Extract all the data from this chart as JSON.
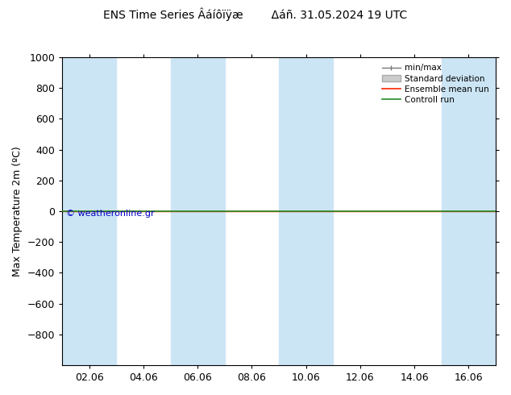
{
  "title": "ENS Time Series Âáíôïÿæ        Δáñ. 31.05.2024 19 UTC",
  "ylabel": "Max Temperature 2m (ºC)",
  "ylim_top": -1000,
  "ylim_bottom": 1000,
  "yticks": [
    -800,
    -600,
    -400,
    -200,
    0,
    200,
    400,
    600,
    800,
    1000
  ],
  "xtick_labels": [
    "02.06",
    "04.06",
    "06.06",
    "08.06",
    "10.06",
    "12.06",
    "14.06",
    "16.06"
  ],
  "xtick_positions": [
    1,
    3,
    5,
    7,
    9,
    11,
    13,
    15
  ],
  "xlim": [
    0,
    16
  ],
  "shaded_bands": [
    [
      0,
      2
    ],
    [
      4,
      6
    ],
    [
      8,
      10
    ],
    [
      14,
      16
    ]
  ],
  "shade_color": "#cce5f5",
  "green_line_y": 0,
  "red_line_y": 0,
  "green_line_color": "#228B22",
  "red_line_color": "#ff2200",
  "watermark": "© weatheronline.gr",
  "watermark_color": "#0000cc",
  "legend_labels": [
    "min/max",
    "Standard deviation",
    "Ensemble mean run",
    "Controll run"
  ],
  "bg_color": "#ffffff",
  "title_fontsize": 10,
  "axis_fontsize": 9
}
